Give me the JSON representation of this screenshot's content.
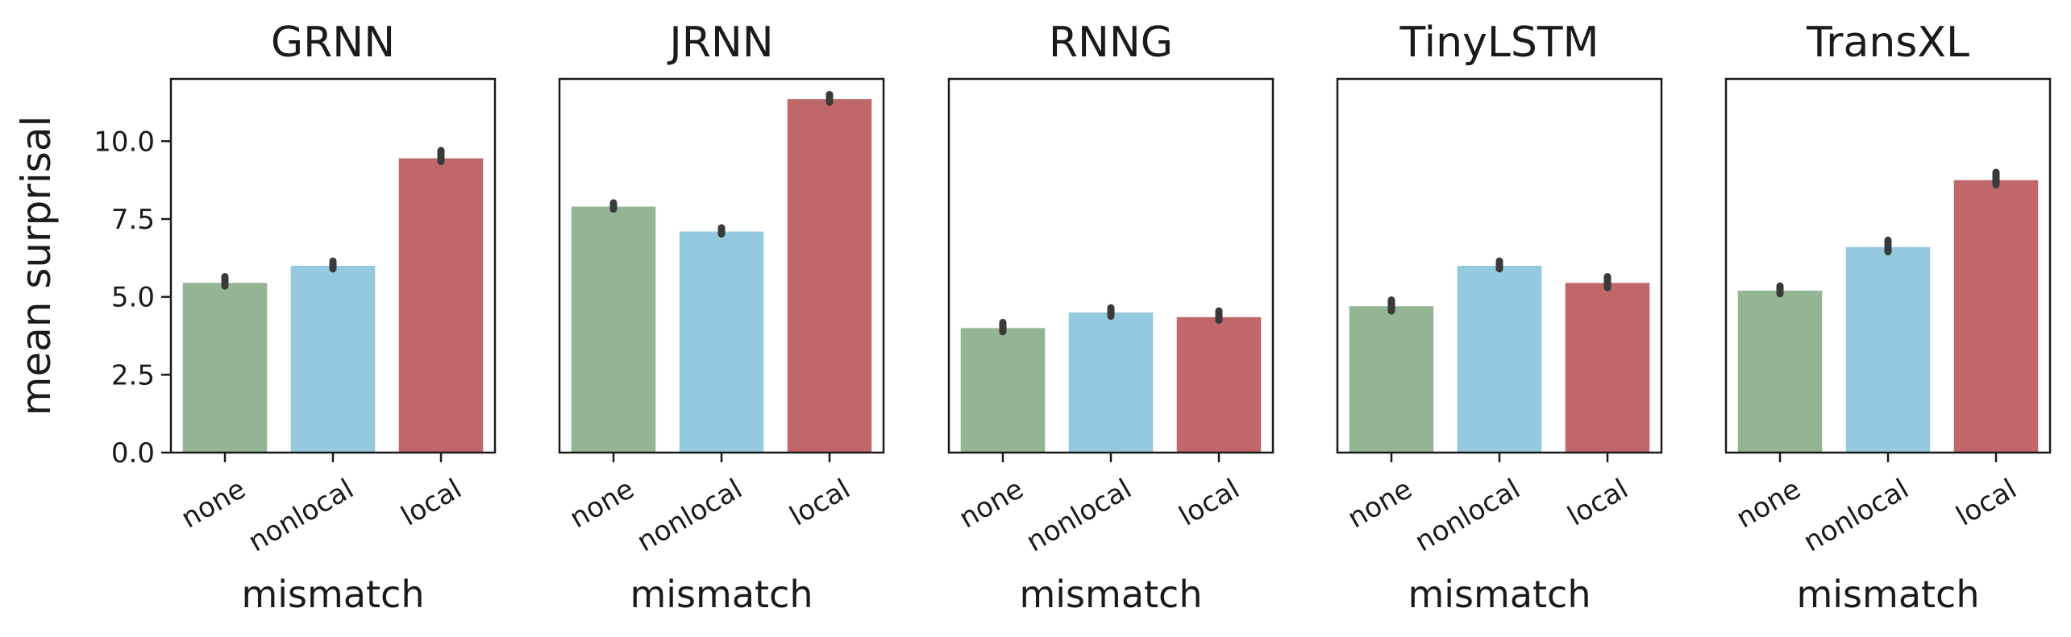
{
  "chart_data": {
    "type": "bar",
    "ylabel": "mean surprisal",
    "ylim": [
      0,
      12
    ],
    "yticks": [
      "0.0",
      "2.5",
      "5.0",
      "7.5",
      "10.0"
    ],
    "grid": false,
    "legend": "none",
    "colors": {
      "none": "#93b594",
      "nonlocal": "#95c9df",
      "local": "#bf6769",
      "errorbar": "#3a3a3a"
    },
    "categories": [
      "none",
      "nonlocal",
      "local"
    ],
    "panels": [
      {
        "title": "GRNN",
        "xlabel": "mismatch",
        "values": [
          5.45,
          6.0,
          9.45
        ],
        "errors": [
          [
            5.35,
            5.65
          ],
          [
            5.9,
            6.15
          ],
          [
            9.35,
            9.7
          ]
        ]
      },
      {
        "title": "JRNN",
        "xlabel": "mismatch",
        "values": [
          7.9,
          7.1,
          11.35
        ],
        "errors": [
          [
            7.82,
            8.02
          ],
          [
            7.02,
            7.22
          ],
          [
            11.25,
            11.5
          ]
        ]
      },
      {
        "title": "RNNG",
        "xlabel": "mismatch",
        "values": [
          4.0,
          4.5,
          4.35
        ],
        "errors": [
          [
            3.88,
            4.18
          ],
          [
            4.38,
            4.65
          ],
          [
            4.25,
            4.55
          ]
        ]
      },
      {
        "title": "TinyLSTM",
        "xlabel": "mismatch",
        "values": [
          4.7,
          6.0,
          5.45
        ],
        "errors": [
          [
            4.55,
            4.9
          ],
          [
            5.9,
            6.15
          ],
          [
            5.3,
            5.65
          ]
        ]
      },
      {
        "title": "TransXL",
        "xlabel": "mismatch",
        "values": [
          5.2,
          6.6,
          8.75
        ],
        "errors": [
          [
            5.1,
            5.35
          ],
          [
            6.45,
            6.82
          ],
          [
            8.6,
            9.0
          ]
        ]
      }
    ]
  }
}
